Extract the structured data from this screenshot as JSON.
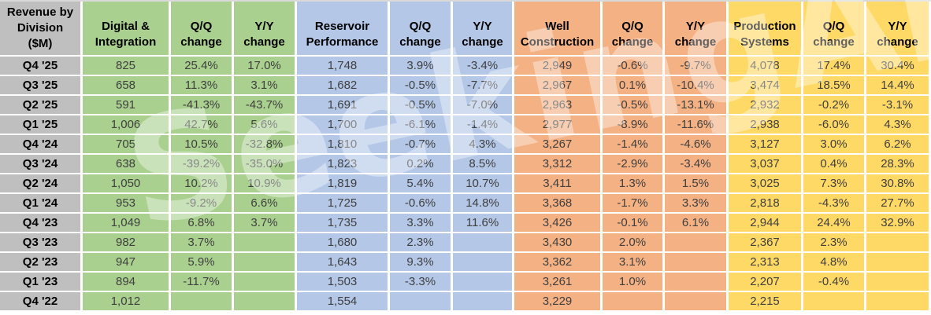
{
  "watermark": "SeekingAlpha",
  "colors": {
    "label_bg": "#BFBFBF",
    "gridline": "#FFFFFF",
    "header_text": "#000000",
    "data_text": "#3F3F3F",
    "green": "#A9D08E",
    "blue": "#B4C7E7",
    "orange": "#F4B183",
    "yellow": "#FFD966"
  },
  "chart_data": {
    "type": "table",
    "title": "Revenue by Division ($M)",
    "corner_header": [
      "Revenue by",
      "Division",
      "($M)"
    ],
    "row_labels": [
      "Q4 '25",
      "Q3 '25",
      "Q2 '25",
      "Q1 '25",
      "Q4 '24",
      "Q3 '24",
      "Q2 '24",
      "Q1 '24",
      "Q4 '23",
      "Q3 '23",
      "Q2 '23",
      "Q1 '23",
      "Q4 '22"
    ],
    "sections": [
      {
        "name": "Digital & Integration",
        "color": "#A9D08E",
        "col_headers": [
          [
            "Digital &",
            "Integration"
          ],
          [
            "Q/Q",
            "change"
          ],
          [
            "Y/Y",
            "change"
          ]
        ],
        "rows": [
          [
            "825",
            "25.4%",
            "17.0%"
          ],
          [
            "658",
            "11.3%",
            "3.1%"
          ],
          [
            "591",
            "-41.3%",
            "-43.7%"
          ],
          [
            "1,006",
            "42.7%",
            "5.6%"
          ],
          [
            "705",
            "10.5%",
            "-32.8%"
          ],
          [
            "638",
            "-39.2%",
            "-35.0%"
          ],
          [
            "1,050",
            "10.2%",
            "10.9%"
          ],
          [
            "953",
            "-9.2%",
            "6.6%"
          ],
          [
            "1,049",
            "6.8%",
            "3.7%"
          ],
          [
            "982",
            "3.7%",
            ""
          ],
          [
            "947",
            "5.9%",
            ""
          ],
          [
            "894",
            "-11.7%",
            ""
          ],
          [
            "1,012",
            "",
            ""
          ]
        ]
      },
      {
        "name": "Reservoir Performance",
        "color": "#B4C7E7",
        "col_headers": [
          [
            "Reservoir",
            "Performance"
          ],
          [
            "Q/Q",
            "change"
          ],
          [
            "Y/Y",
            "change"
          ]
        ],
        "rows": [
          [
            "1,748",
            "3.9%",
            "-3.4%"
          ],
          [
            "1,682",
            "-0.5%",
            "-7.7%"
          ],
          [
            "1,691",
            "-0.5%",
            "-7.0%"
          ],
          [
            "1,700",
            "-6.1%",
            "-1.4%"
          ],
          [
            "1,810",
            "-0.7%",
            "4.3%"
          ],
          [
            "1,823",
            "0.2%",
            "8.5%"
          ],
          [
            "1,819",
            "5.4%",
            "10.7%"
          ],
          [
            "1,725",
            "-0.6%",
            "14.8%"
          ],
          [
            "1,735",
            "3.3%",
            "11.6%"
          ],
          [
            "1,680",
            "2.3%",
            ""
          ],
          [
            "1,643",
            "9.3%",
            ""
          ],
          [
            "1,503",
            "-3.3%",
            ""
          ],
          [
            "1,554",
            "",
            ""
          ]
        ]
      },
      {
        "name": "Well Construction",
        "color": "#F4B183",
        "col_headers": [
          [
            "Well",
            "Construction"
          ],
          [
            "Q/Q",
            "change"
          ],
          [
            "Y/Y",
            "change"
          ]
        ],
        "rows": [
          [
            "2,949",
            "-0.6%",
            "-9.7%"
          ],
          [
            "2,967",
            "0.1%",
            "-10.4%"
          ],
          [
            "2,963",
            "-0.5%",
            "-13.1%"
          ],
          [
            "2,977",
            "-8.9%",
            "-11.6%"
          ],
          [
            "3,267",
            "-1.4%",
            "-4.6%"
          ],
          [
            "3,312",
            "-2.9%",
            "-3.4%"
          ],
          [
            "3,411",
            "1.3%",
            "1.5%"
          ],
          [
            "3,368",
            "-1.7%",
            "3.3%"
          ],
          [
            "3,426",
            "-0.1%",
            "6.1%"
          ],
          [
            "3,430",
            "2.0%",
            ""
          ],
          [
            "3,362",
            "3.1%",
            ""
          ],
          [
            "3,261",
            "1.0%",
            ""
          ],
          [
            "3,229",
            "",
            ""
          ]
        ]
      },
      {
        "name": "Production Systems",
        "color": "#FFD966",
        "col_headers": [
          [
            "Production",
            "Systems"
          ],
          [
            "Q/Q",
            "change"
          ],
          [
            "Y/Y",
            "change"
          ]
        ],
        "rows": [
          [
            "4,078",
            "17.4%",
            "30.4%"
          ],
          [
            "3,474",
            "18.5%",
            "14.4%"
          ],
          [
            "2,932",
            "-0.2%",
            "-3.1%"
          ],
          [
            "2,938",
            "-6.0%",
            "4.3%"
          ],
          [
            "3,127",
            "3.0%",
            "6.2%"
          ],
          [
            "3,037",
            "0.4%",
            "28.3%"
          ],
          [
            "3,025",
            "7.3%",
            "30.8%"
          ],
          [
            "2,818",
            "-4.3%",
            "27.7%"
          ],
          [
            "2,944",
            "24.4%",
            "32.9%"
          ],
          [
            "2,367",
            "2.3%",
            ""
          ],
          [
            "2,313",
            "4.8%",
            ""
          ],
          [
            "2,207",
            "-0.4%",
            ""
          ],
          [
            "2,215",
            "",
            ""
          ]
        ]
      }
    ]
  }
}
